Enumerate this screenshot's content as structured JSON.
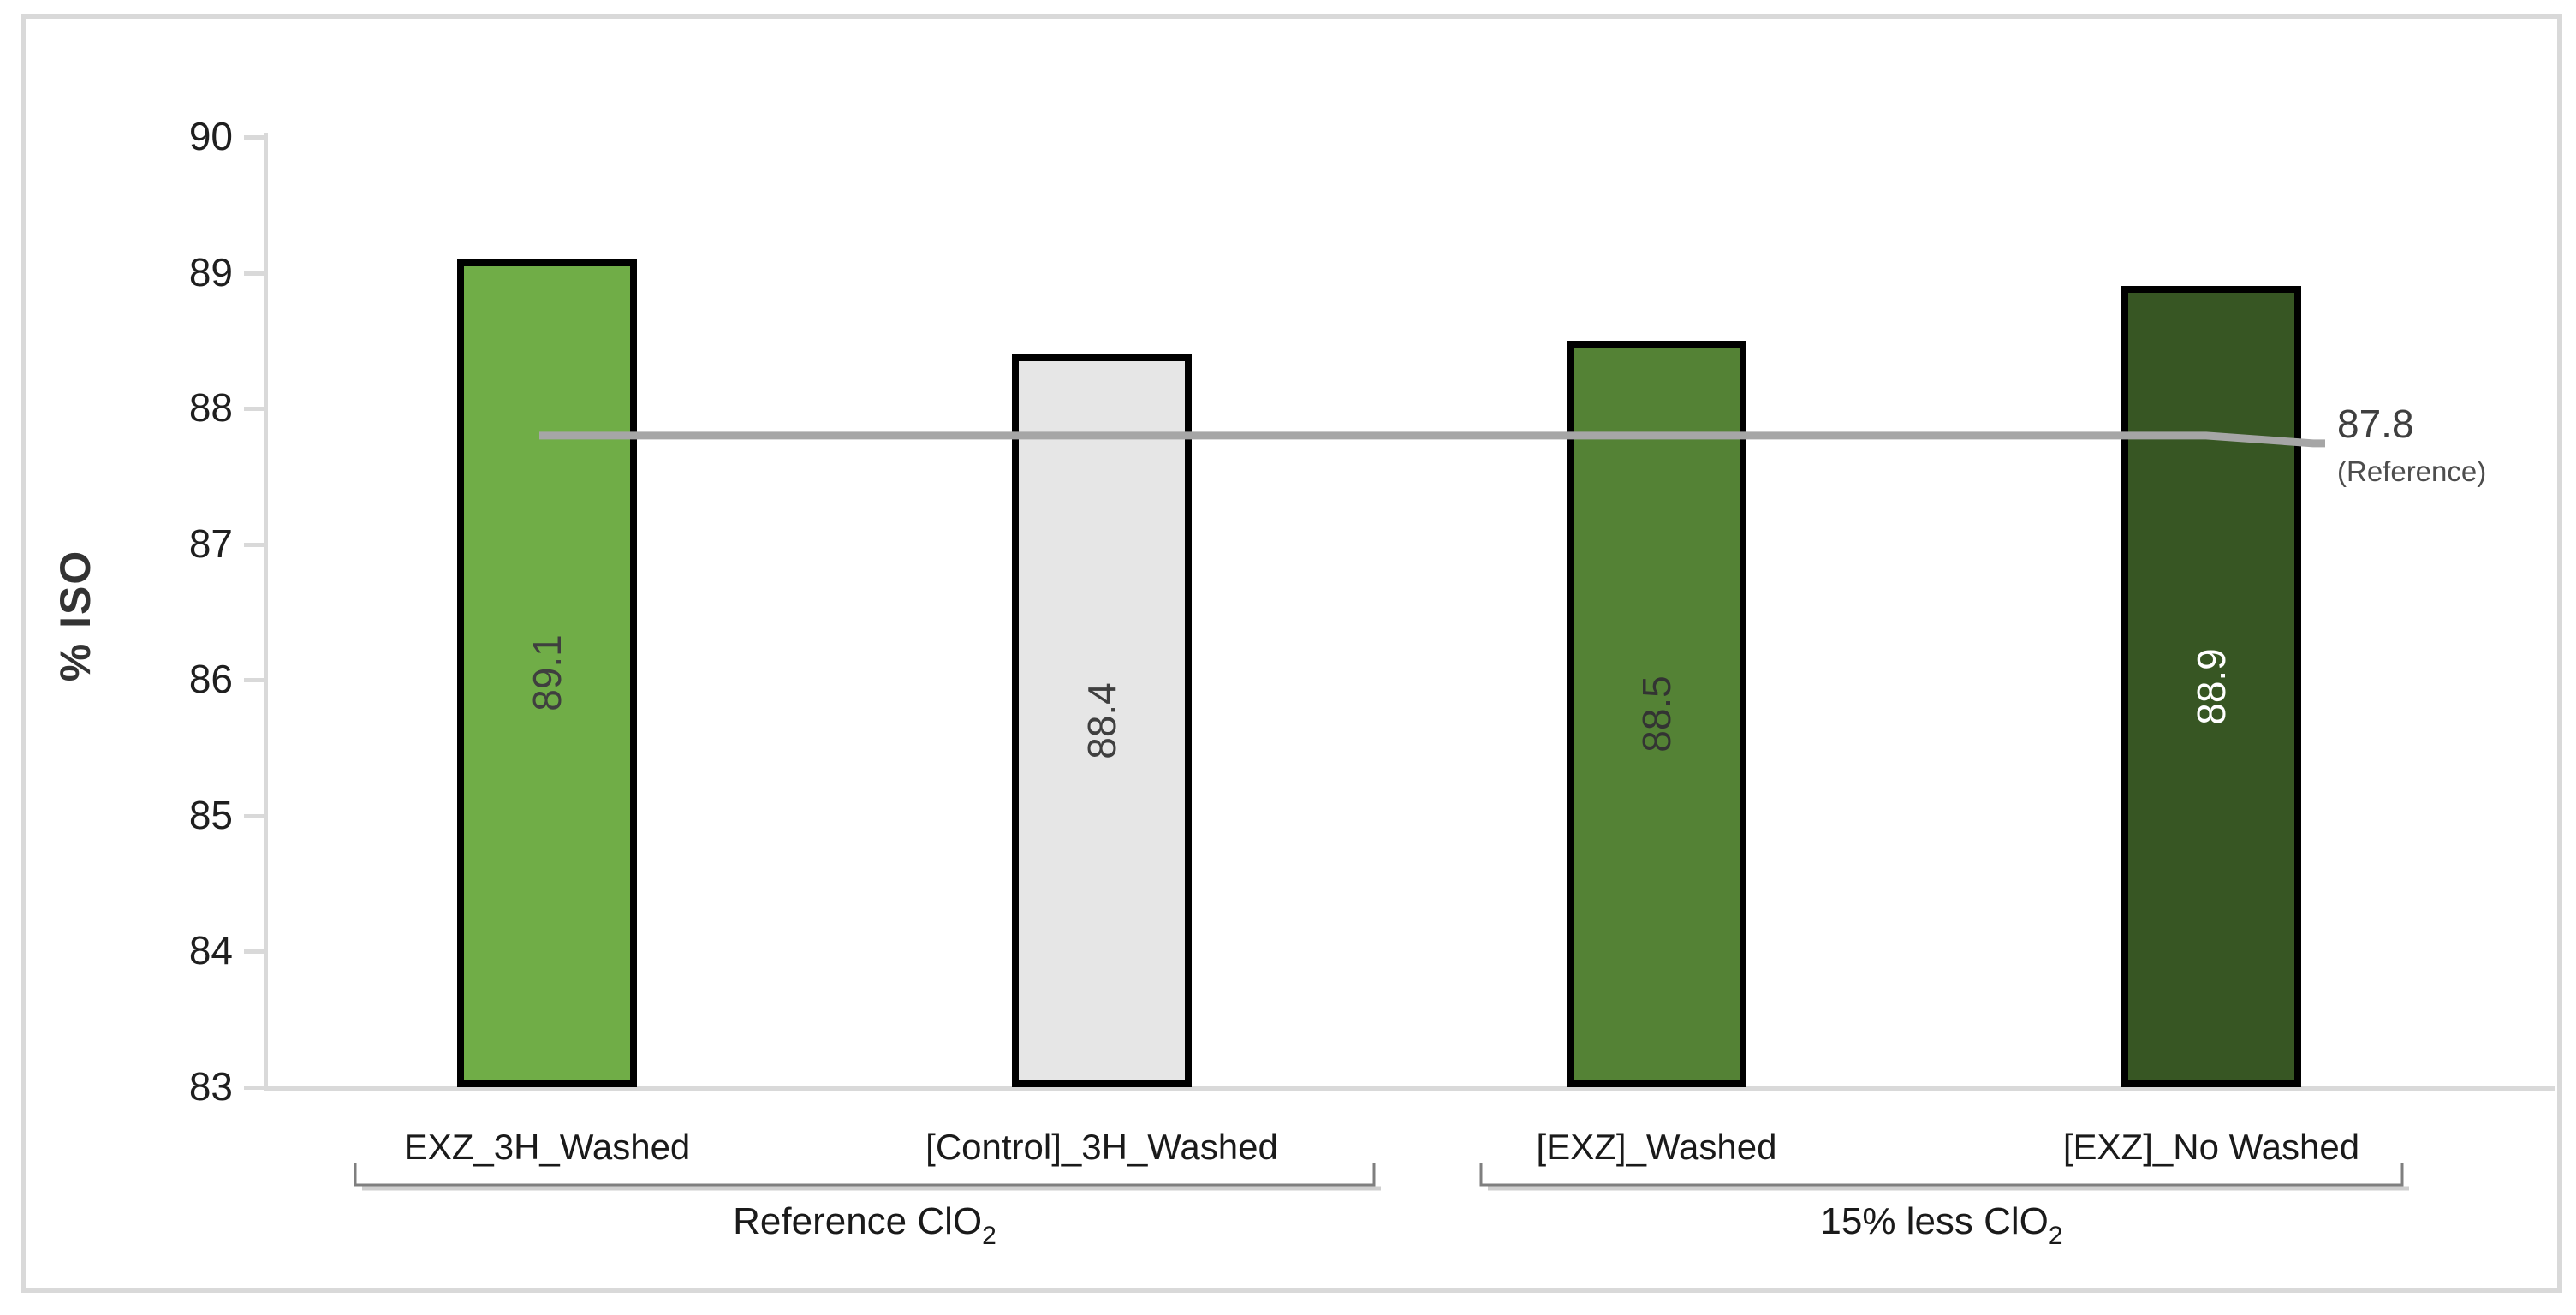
{
  "chart_data": {
    "type": "bar",
    "title": "",
    "ylabel": "% ISO",
    "xlabel": "",
    "ylim": [
      83,
      90
    ],
    "yticks": [
      83,
      84,
      85,
      86,
      87,
      88,
      89,
      90
    ],
    "grid": false,
    "legend": false,
    "categories": [
      "EXZ_3H_Washed",
      "[Control]_3H_Washed",
      "[EXZ]_Washed",
      "[EXZ]_No Washed"
    ],
    "values": [
      89.1,
      88.4,
      88.5,
      88.9
    ],
    "value_labels": [
      "89.1",
      "88.4",
      "88.5",
      "88.9"
    ],
    "bar_colors": [
      "#70AD47",
      "#E6E6E6",
      "#548235",
      "#375623"
    ],
    "bar_label_colors": [
      "#3F3F3F",
      "#3F3F3F",
      "#333333",
      "#FFFFFF"
    ],
    "bar_border_color": "#000000",
    "category_groups": [
      {
        "label": "Reference ClO",
        "sub": "2",
        "span": [
          0,
          1
        ]
      },
      {
        "label": "15% less ClO",
        "sub": "2",
        "span": [
          2,
          3
        ]
      }
    ],
    "reference_line": {
      "value": 87.8,
      "label": "87.8",
      "sublabel": "(Reference)",
      "color": "#A6A6A6"
    },
    "axis_color": "#D9D9D9"
  }
}
